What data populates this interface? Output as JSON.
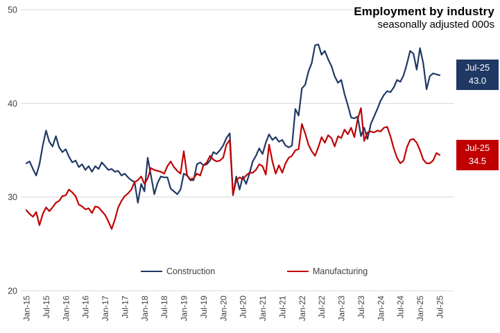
{
  "header": {
    "title": "Employment by industry",
    "subtitle": "seasonally adjusted 000s"
  },
  "legend": {
    "items": [
      {
        "label": "Construction",
        "color": "#1f3864"
      },
      {
        "label": "Manufacturing",
        "color": "#c00000"
      }
    ]
  },
  "callouts": {
    "construction": {
      "period": "Jul-25",
      "value": "43.0",
      "color": "#1f3864"
    },
    "manufacturing": {
      "period": "Jul-25",
      "value": "34.5",
      "color": "#c00000"
    }
  },
  "colors": {
    "grid": "#d9d9d9",
    "tick_text": "#404040",
    "title_text": "#000000",
    "background": "#ffffff"
  },
  "chart_data": {
    "type": "line",
    "title": "Employment by industry",
    "subtitle": "seasonally adjusted 000s",
    "x_interval": "monthly",
    "x_start": "Jan-15",
    "x_end": "Jul-25",
    "x_tick_labels": [
      "Jan-15",
      "Jul-15",
      "Jan-16",
      "Jul-16",
      "Jan-17",
      "Jul-17",
      "Jan-18",
      "Jul-18",
      "Jan-19",
      "Jul-19",
      "Jan-20",
      "Jul-20",
      "Jan-21",
      "Jul-21",
      "Jan-22",
      "Jul-22",
      "Jan-23",
      "Jul-23",
      "Jan-24",
      "Jul-24",
      "Jan-25",
      "Jul-25"
    ],
    "x_tick_every_n_months": 6,
    "ylim": [
      20,
      50
    ],
    "y_ticks": [
      50,
      40,
      30,
      20
    ],
    "grid": "horizontal",
    "legend_position": "bottom",
    "series": [
      {
        "name": "Construction",
        "color": "#1f3864",
        "values": [
          33.6,
          33.8,
          33.0,
          32.3,
          33.5,
          35.5,
          37.1,
          35.9,
          35.4,
          36.5,
          35.3,
          34.8,
          35.1,
          34.3,
          33.7,
          33.9,
          33.2,
          33.5,
          32.9,
          33.3,
          32.7,
          33.3,
          33.0,
          33.7,
          33.3,
          32.9,
          33.0,
          32.7,
          32.8,
          32.3,
          32.5,
          32.1,
          31.8,
          31.6,
          29.4,
          31.4,
          30.6,
          34.2,
          32.3,
          30.3,
          31.5,
          32.2,
          32.1,
          32.1,
          30.9,
          30.6,
          30.3,
          30.8,
          32.5,
          32.3,
          31.8,
          31.8,
          33.5,
          33.7,
          33.4,
          33.5,
          33.9,
          34.8,
          34.6,
          35.0,
          35.5,
          36.3,
          36.8,
          30.2,
          32.2,
          30.8,
          32.2,
          31.4,
          32.5,
          33.8,
          34.4,
          35.2,
          34.6,
          35.8,
          36.7,
          36.1,
          36.4,
          35.9,
          36.1,
          35.5,
          35.3,
          35.5,
          39.4,
          38.7,
          41.6,
          42.0,
          43.4,
          44.3,
          46.2,
          46.3,
          45.2,
          45.6,
          44.7,
          44.0,
          42.9,
          42.2,
          42.5,
          41.0,
          39.8,
          38.5,
          38.4,
          38.6,
          36.5,
          37.4,
          36.2,
          37.8,
          38.6,
          39.4,
          40.3,
          40.9,
          41.3,
          41.2,
          41.7,
          42.5,
          42.3,
          43.0,
          44.2,
          45.6,
          45.3,
          43.6,
          45.9,
          44.3,
          41.5,
          42.9,
          43.2,
          43.1,
          43.0
        ]
      },
      {
        "name": "Manufacturing",
        "color": "#c00000",
        "values": [
          28.6,
          28.2,
          27.9,
          28.4,
          27.0,
          28.2,
          28.9,
          28.5,
          28.9,
          29.4,
          29.6,
          30.1,
          30.2,
          30.8,
          30.5,
          30.1,
          29.2,
          29.0,
          28.7,
          28.8,
          28.3,
          29.0,
          28.9,
          28.5,
          28.1,
          27.4,
          26.6,
          27.6,
          28.9,
          29.6,
          30.1,
          30.4,
          30.8,
          31.6,
          31.8,
          32.2,
          31.4,
          32.0,
          33.1,
          32.9,
          32.8,
          32.7,
          32.5,
          33.3,
          33.8,
          33.2,
          32.8,
          32.5,
          34.9,
          32.3,
          31.9,
          32.0,
          32.5,
          32.3,
          33.4,
          33.7,
          34.4,
          34.0,
          33.8,
          33.9,
          34.2,
          35.6,
          36.1,
          30.3,
          31.8,
          32.1,
          31.9,
          32.3,
          32.6,
          32.6,
          32.9,
          33.5,
          33.3,
          32.4,
          35.6,
          33.8,
          32.5,
          33.4,
          32.6,
          33.6,
          34.2,
          34.4,
          35.0,
          35.1,
          37.8,
          36.8,
          35.6,
          34.9,
          34.4,
          35.3,
          36.4,
          35.8,
          36.6,
          36.3,
          35.4,
          36.5,
          36.3,
          37.2,
          36.7,
          37.4,
          36.4,
          38.3,
          39.5,
          36.0,
          36.9,
          37.0,
          36.9,
          37.1,
          37.0,
          37.4,
          37.5,
          36.5,
          35.2,
          34.2,
          33.6,
          33.9,
          35.3,
          36.1,
          36.2,
          35.8,
          35.0,
          34.0,
          33.6,
          33.6,
          33.9,
          34.7,
          34.5
        ]
      }
    ],
    "last_point_labels": [
      {
        "series": "Construction",
        "label": "Jul-25",
        "value": 43.0
      },
      {
        "series": "Manufacturing",
        "label": "Jul-25",
        "value": 34.5
      }
    ]
  }
}
